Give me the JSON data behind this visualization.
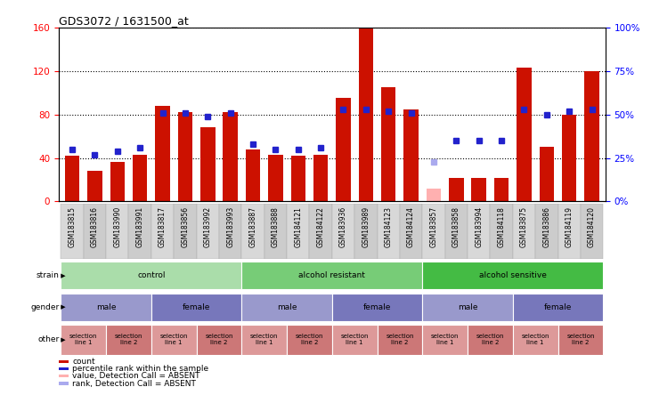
{
  "title": "GDS3072 / 1631500_at",
  "samples": [
    "GSM183815",
    "GSM183816",
    "GSM183990",
    "GSM183991",
    "GSM183817",
    "GSM183856",
    "GSM183992",
    "GSM183993",
    "GSM183887",
    "GSM183888",
    "GSM184121",
    "GSM184122",
    "GSM183936",
    "GSM183989",
    "GSM184123",
    "GSM184124",
    "GSM183857",
    "GSM183858",
    "GSM183994",
    "GSM184118",
    "GSM183875",
    "GSM183886",
    "GSM184119",
    "GSM184120"
  ],
  "counts": [
    42,
    28,
    36,
    43,
    88,
    82,
    68,
    82,
    48,
    43,
    42,
    43,
    95,
    160,
    105,
    85,
    12,
    22,
    22,
    22,
    123,
    50,
    80,
    120
  ],
  "percentile": [
    30,
    27,
    29,
    31,
    51,
    51,
    49,
    51,
    33,
    30,
    30,
    31,
    53,
    53,
    52,
    51,
    23,
    35,
    35,
    35,
    53,
    50,
    52,
    53
  ],
  "absent": [
    false,
    false,
    false,
    false,
    false,
    false,
    false,
    false,
    false,
    false,
    false,
    false,
    false,
    false,
    false,
    false,
    true,
    false,
    false,
    false,
    false,
    false,
    false,
    false
  ],
  "left_ylim": [
    0,
    160
  ],
  "right_ylim": [
    0,
    100
  ],
  "left_yticks": [
    0,
    40,
    80,
    120,
    160
  ],
  "right_yticks": [
    0,
    25,
    50,
    75,
    100
  ],
  "right_yticklabels": [
    "0%",
    "25%",
    "50%",
    "75%",
    "100%"
  ],
  "bar_color": "#cc1100",
  "bar_absent_color": "#ffb0b0",
  "rank_color": "#2222cc",
  "rank_absent_color": "#aaaaee",
  "dotted_color": "black",
  "strain_groups": [
    {
      "label": "control",
      "start": 0,
      "end": 7,
      "color": "#aaddaa"
    },
    {
      "label": "alcohol resistant",
      "start": 8,
      "end": 15,
      "color": "#77cc77"
    },
    {
      "label": "alcohol sensitive",
      "start": 16,
      "end": 23,
      "color": "#44bb44"
    }
  ],
  "gender_groups": [
    {
      "label": "male",
      "start": 0,
      "end": 3,
      "color": "#9999cc"
    },
    {
      "label": "female",
      "start": 4,
      "end": 7,
      "color": "#7777bb"
    },
    {
      "label": "male",
      "start": 8,
      "end": 11,
      "color": "#9999cc"
    },
    {
      "label": "female",
      "start": 12,
      "end": 15,
      "color": "#7777bb"
    },
    {
      "label": "male",
      "start": 16,
      "end": 19,
      "color": "#9999cc"
    },
    {
      "label": "female",
      "start": 20,
      "end": 23,
      "color": "#7777bb"
    }
  ],
  "other_groups": [
    {
      "label": "selection\nline 1",
      "start": 0,
      "end": 1,
      "color": "#dd9999"
    },
    {
      "label": "selection\nline 2",
      "start": 2,
      "end": 3,
      "color": "#cc7777"
    },
    {
      "label": "selection\nline 1",
      "start": 4,
      "end": 5,
      "color": "#dd9999"
    },
    {
      "label": "selection\nline 2",
      "start": 6,
      "end": 7,
      "color": "#cc7777"
    },
    {
      "label": "selection\nline 1",
      "start": 8,
      "end": 9,
      "color": "#dd9999"
    },
    {
      "label": "selection\nline 2",
      "start": 10,
      "end": 11,
      "color": "#cc7777"
    },
    {
      "label": "selection\nline 1",
      "start": 12,
      "end": 13,
      "color": "#dd9999"
    },
    {
      "label": "selection\nline 2",
      "start": 14,
      "end": 15,
      "color": "#cc7777"
    },
    {
      "label": "selection\nline 1",
      "start": 16,
      "end": 17,
      "color": "#dd9999"
    },
    {
      "label": "selection\nline 2",
      "start": 18,
      "end": 19,
      "color": "#cc7777"
    },
    {
      "label": "selection\nline 1",
      "start": 20,
      "end": 21,
      "color": "#dd9999"
    },
    {
      "label": "selection\nline 2",
      "start": 22,
      "end": 23,
      "color": "#cc7777"
    }
  ],
  "legend_items": [
    {
      "color": "#cc1100",
      "marker": "s",
      "label": "count"
    },
    {
      "color": "#2222cc",
      "marker": "s",
      "label": "percentile rank within the sample"
    },
    {
      "color": "#ffb0b0",
      "marker": "s",
      "label": "value, Detection Call = ABSENT"
    },
    {
      "color": "#aaaaee",
      "marker": "s",
      "label": "rank, Detection Call = ABSENT"
    }
  ]
}
